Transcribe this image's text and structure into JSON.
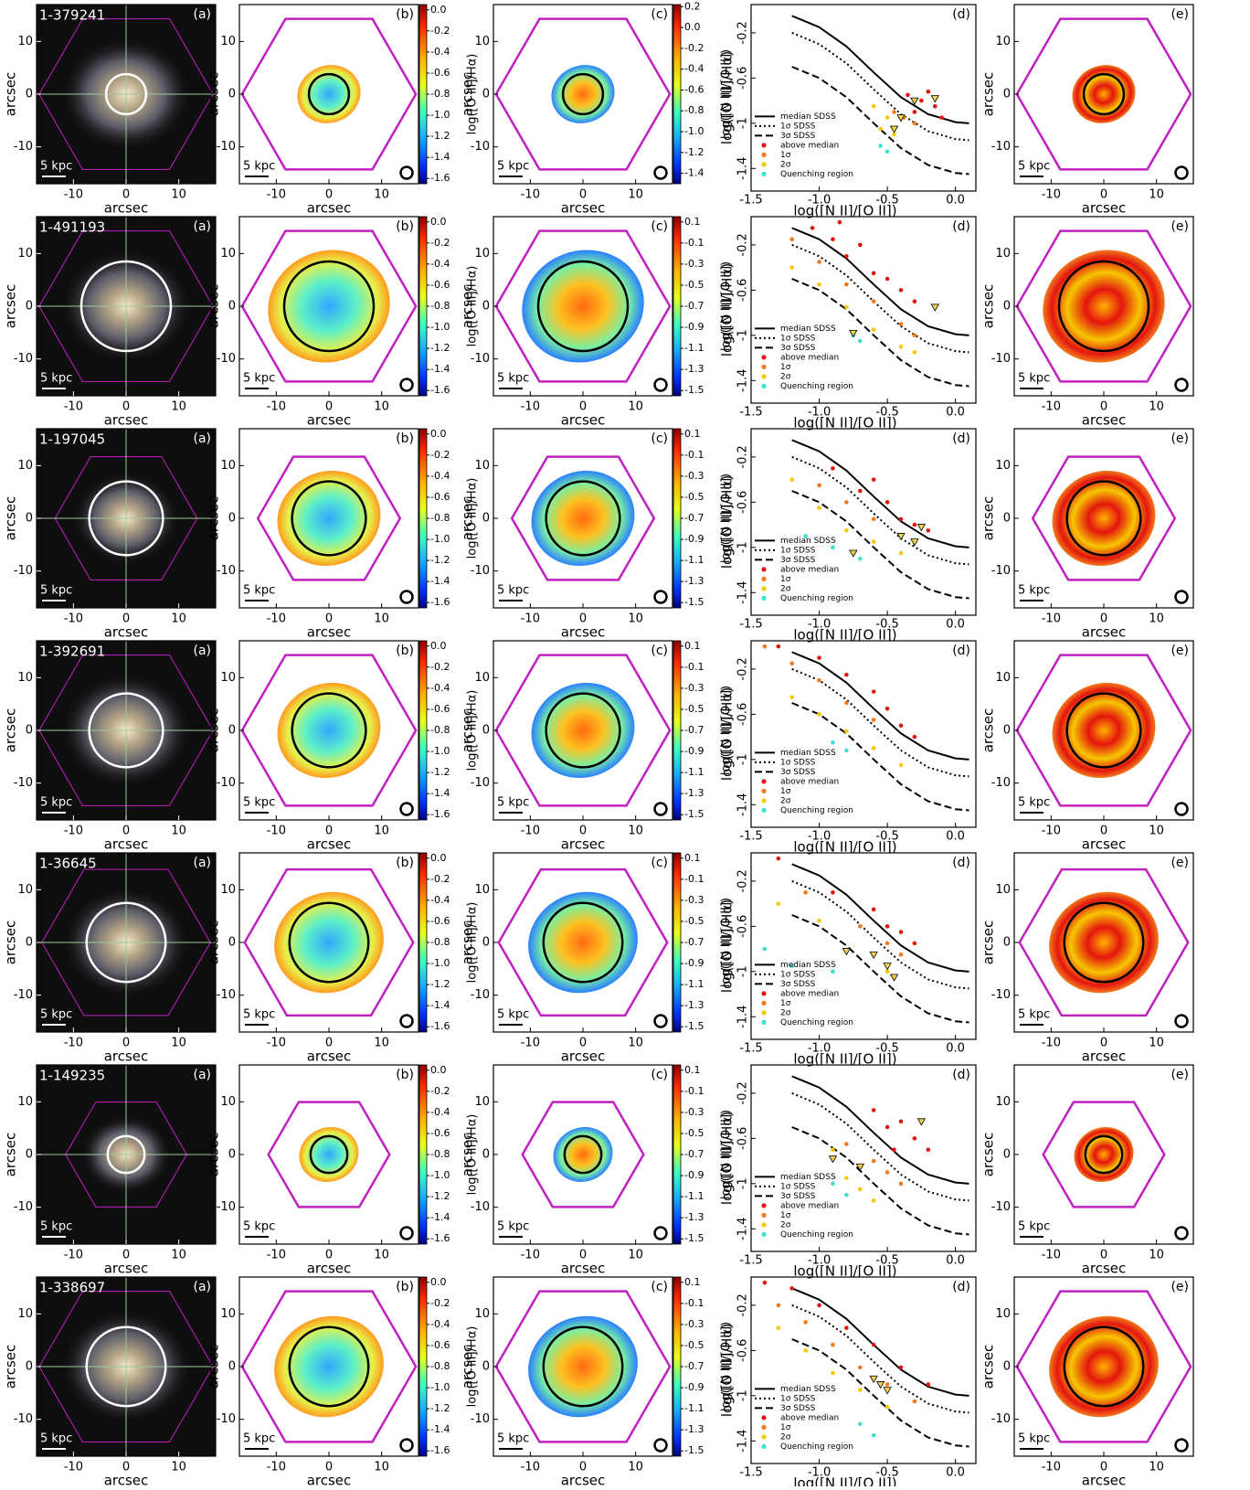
{
  "chart_data": {
    "type": "scatter",
    "map_axis": {
      "xlabel": "arcsec",
      "ylabel": "arcsec",
      "xlim": [
        -17,
        17
      ],
      "ylim": [
        -17,
        17
      ],
      "xticks": [
        -10,
        0,
        10
      ],
      "yticks": [
        -10,
        0,
        10
      ],
      "scale_label": "5 kpc"
    },
    "panel_letters": [
      "(a)",
      "(b)",
      "(c)",
      "(d)",
      "(e)"
    ],
    "cbar_o3": {
      "label": "log([O III]/Hα)",
      "ylim": [
        -1.65,
        0.05
      ],
      "yticks": [
        {
          "value": 0,
          "label": "0.0"
        },
        -0.2,
        -0.4,
        -0.6,
        -0.8,
        {
          "value": -1,
          "label": "-1.0"
        },
        -1.2,
        -1.4,
        -1.6
      ]
    },
    "cbar_n2o2_label": "log([N II]/[O II])",
    "bpt": {
      "xlabel": "log([N II]/[O II])",
      "ylabel": "log([O III]/Hα)",
      "xlim": [
        -1.5,
        0.15
      ],
      "ylim": [
        -1.6,
        0.05
      ],
      "xticks": [
        -1.5,
        {
          "value": -1,
          "label": "-1.0"
        },
        -0.5,
        {
          "value": 0,
          "label": "0.0"
        }
      ],
      "yticks": [
        -0.2,
        -0.6,
        -1,
        -1.4
      ],
      "lines": [
        {
          "name": "median SDSS",
          "style": "solid",
          "x": [
            -1.2,
            -1.0,
            -0.8,
            -0.6,
            -0.4,
            -0.2,
            0.0,
            0.1
          ],
          "y": [
            -0.05,
            -0.15,
            -0.32,
            -0.55,
            -0.77,
            -0.92,
            -0.99,
            -1.0
          ]
        },
        {
          "name": "1σ SDSS",
          "style": "dotted",
          "x": [
            -1.2,
            -1.0,
            -0.8,
            -0.6,
            -0.4,
            -0.2,
            0.0,
            0.1
          ],
          "y": [
            -0.2,
            -0.3,
            -0.47,
            -0.7,
            -0.92,
            -1.07,
            -1.14,
            -1.15
          ]
        },
        {
          "name": "3σ SDSS",
          "style": "dashed",
          "x": [
            -1.2,
            -1.0,
            -0.8,
            -0.6,
            -0.4,
            -0.2,
            0.0,
            0.1
          ],
          "y": [
            -0.5,
            -0.6,
            -0.77,
            -1.0,
            -1.22,
            -1.37,
            -1.44,
            -1.45
          ]
        }
      ],
      "series": [
        {
          "name": "above median",
          "color": "#e4150f"
        },
        {
          "name": "1σ",
          "color": "#f27a1c"
        },
        {
          "name": "2σ",
          "color": "#f6c700"
        },
        {
          "name": "Quenching region",
          "color": "#3fe0d0"
        }
      ]
    },
    "rows": [
      {
        "id": "1-379241",
        "hex_radius": 16.5,
        "re_radius": 3.8,
        "cbar_n2o2": {
          "ylim": [
            -1.5,
            0.22
          ],
          "yticks": [
            0.2,
            {
              "value": 0,
              "label": "0.0"
            },
            -0.2,
            -0.4,
            -0.6,
            -0.8,
            {
              "value": -1,
              "label": "-1.0"
            },
            -1.2,
            -1.4
          ]
        },
        "points": [
          {
            "x": [
              -0.35,
              -0.25,
              -0.15,
              -0.3,
              -0.2,
              -0.1
            ],
            "y": [
              -0.75,
              -0.8,
              -0.85,
              -0.9,
              -0.72,
              -0.95
            ]
          },
          {
            "x": [
              -0.45,
              -0.38,
              -0.3
            ],
            "y": [
              -0.9,
              -0.95,
              -1.0
            ]
          },
          {
            "x": [
              -0.6,
              -0.55,
              -0.45,
              -0.5
            ],
            "y": [
              -0.85,
              -1.05,
              -1.1,
              -0.95
            ]
          },
          {
            "x": [
              -0.55,
              -0.5
            ],
            "y": [
              -1.2,
              -1.25
            ]
          }
        ],
        "limits": {
          "x": [
            -0.4,
            -0.45,
            -0.3,
            -0.15
          ],
          "y": [
            -0.95,
            -1.05,
            -0.8,
            -0.78
          ]
        }
      },
      {
        "id": "1-491193",
        "hex_radius": 16.5,
        "re_radius": 8.5,
        "cbar_n2o2": {
          "ylim": [
            -1.55,
            0.15
          ],
          "yticks": [
            0.1,
            -0.1,
            -0.3,
            -0.5,
            -0.7,
            -0.9,
            -1.1,
            -1.3,
            -1.5
          ]
        },
        "points": [
          {
            "x": [
              -1.05,
              -0.9,
              -0.8,
              -0.7,
              -0.6,
              -0.5,
              -0.4,
              -0.3,
              -0.85
            ],
            "y": [
              -0.05,
              -0.15,
              -0.3,
              -0.2,
              -0.45,
              -0.5,
              -0.6,
              -0.7,
              0
            ]
          },
          {
            "x": [
              -1.2,
              -1,
              -0.8,
              -0.6,
              -0.4,
              -0.3
            ],
            "y": [
              -0.15,
              -0.35,
              -0.55,
              -0.7,
              -0.9,
              -1
            ]
          },
          {
            "x": [
              -1.2,
              -1,
              -0.8,
              -0.6,
              -0.4,
              -0.3
            ],
            "y": [
              -0.4,
              -0.55,
              -0.75,
              -0.95,
              -1.1,
              -1.15
            ]
          },
          {
            "x": [
              -0.75,
              -0.7
            ],
            "y": [
              -1,
              -1.05
            ]
          }
        ],
        "limits": {
          "x": [
            -0.75,
            -0.15
          ],
          "y": [
            -0.98,
            -0.75
          ]
        }
      },
      {
        "id": "1-197045",
        "hex_radius": 13.5,
        "re_radius": 7,
        "cbar_n2o2": {
          "ylim": [
            -1.55,
            0.15
          ],
          "yticks": [
            0.1,
            -0.1,
            -0.3,
            -0.5,
            -0.7,
            -0.9,
            -1.1,
            -1.3,
            -1.5
          ]
        },
        "points": [
          {
            "x": [
              -0.9,
              -0.7,
              -0.6,
              -0.5,
              -0.4,
              -0.3,
              -0.2
            ],
            "y": [
              -0.3,
              -0.5,
              -0.4,
              -0.6,
              -0.75,
              -0.8,
              -0.85
            ]
          },
          {
            "x": [
              -1,
              -0.8,
              -0.6,
              -0.4
            ],
            "y": [
              -0.45,
              -0.6,
              -0.75,
              -0.9
            ]
          },
          {
            "x": [
              -1.2,
              -1,
              -0.8,
              -0.6,
              -0.4
            ],
            "y": [
              -0.4,
              -0.65,
              -0.85,
              -0.95,
              -1.05
            ]
          },
          {
            "x": [
              -1.1,
              -0.9,
              -0.7
            ],
            "y": [
              -0.9,
              -1,
              -1.1
            ]
          }
        ],
        "limits": {
          "x": [
            -0.4,
            -0.3,
            -0.25,
            -0.75
          ],
          "y": [
            -0.9,
            -0.95,
            -0.82,
            -1.05
          ]
        }
      },
      {
        "id": "1-392691",
        "hex_radius": 16.5,
        "re_radius": 7,
        "cbar_n2o2": {
          "ylim": [
            -1.55,
            0.15
          ],
          "yticks": [
            0.1,
            -0.1,
            -0.3,
            -0.5,
            -0.7,
            -0.9,
            -1.1,
            -1.3,
            -1.5
          ]
        },
        "points": [
          {
            "x": [
              -1.3,
              -1,
              -0.8,
              -0.6,
              -0.5,
              -0.4,
              -0.3
            ],
            "y": [
              0.0,
              -0.1,
              -0.25,
              -0.4,
              -0.55,
              -0.7,
              -0.8
            ]
          },
          {
            "x": [
              -1.4,
              -1.2,
              -1,
              -0.8,
              -0.6
            ],
            "y": [
              0,
              -0.15,
              -0.3,
              -0.5,
              -0.65
            ]
          },
          {
            "x": [
              -1.2,
              -1,
              -0.8,
              -0.6,
              -0.4
            ],
            "y": [
              -0.45,
              -0.6,
              -0.75,
              -0.9,
              -1.05
            ]
          },
          {
            "x": [
              -0.9,
              -0.8
            ],
            "y": [
              -0.85,
              -0.92
            ]
          }
        ],
        "limits": {
          "x": [],
          "y": []
        }
      },
      {
        "id": "1-36645",
        "hex_radius": 16,
        "re_radius": 7.5,
        "cbar_n2o2": {
          "ylim": [
            -1.55,
            0.15
          ],
          "yticks": [
            0.1,
            -0.1,
            -0.3,
            -0.5,
            -0.7,
            -0.9,
            -1.1,
            -1.3,
            -1.5
          ]
        },
        "points": [
          {
            "x": [
              -1.3,
              -0.9,
              -0.6,
              -0.5,
              -0.4,
              -0.3
            ],
            "y": [
              0.0,
              -0.3,
              -0.45,
              -0.6,
              -0.65,
              -0.75
            ]
          },
          {
            "x": [
              -1.1,
              -0.7,
              -0.5,
              -0.4
            ],
            "y": [
              -0.3,
              -0.6,
              -0.75,
              -0.85
            ]
          },
          {
            "x": [
              -1.3,
              -1,
              -0.6,
              -0.5
            ],
            "y": [
              -0.4,
              -0.55,
              -0.85,
              -1
            ]
          },
          {
            "x": [
              -1.4,
              -1.2,
              -0.9
            ],
            "y": [
              -0.8,
              -0.95,
              -1
            ]
          }
        ],
        "limits": {
          "x": [
            -0.8,
            -0.6,
            -0.5,
            -0.45
          ],
          "y": [
            -0.82,
            -0.85,
            -0.95,
            -1.05
          ]
        }
      },
      {
        "id": "1-149235",
        "hex_radius": 11.5,
        "re_radius": 3.5,
        "cbar_n2o2": {
          "ylim": [
            -1.55,
            0.15
          ],
          "yticks": [
            0.1,
            -0.1,
            -0.3,
            -0.5,
            -0.7,
            -0.9,
            -1.1,
            -1.3,
            -1.5
          ]
        },
        "points": [
          {
            "x": [
              -0.6,
              -0.5,
              -0.4,
              -0.3,
              -0.2,
              -0.45
            ],
            "y": [
              -0.35,
              -0.5,
              -0.45,
              -0.6,
              -0.7,
              -0.7
            ]
          },
          {
            "x": [
              -0.8,
              -0.6,
              -0.5,
              -0.4
            ],
            "y": [
              -0.65,
              -0.8,
              -0.9,
              -1
            ]
          },
          {
            "x": [
              -0.9,
              -0.8,
              -0.7,
              -0.6
            ],
            "y": [
              -0.7,
              -0.95,
              -1.05,
              -1.15
            ]
          },
          {
            "x": [
              -0.8,
              -0.9
            ],
            "y": [
              -1.1,
              -1
            ]
          }
        ],
        "limits": {
          "x": [
            -0.9,
            -0.25,
            -0.7
          ],
          "y": [
            -0.78,
            -0.45,
            -0.85
          ]
        }
      },
      {
        "id": "1-338697",
        "hex_radius": 16.5,
        "re_radius": 7.5,
        "cbar_n2o2": {
          "ylim": [
            -1.55,
            0.15
          ],
          "yticks": [
            0.1,
            -0.1,
            -0.3,
            -0.5,
            -0.7,
            -0.9,
            -1.1,
            -1.3,
            -1.5
          ]
        },
        "points": [
          {
            "x": [
              -1.4,
              -1.2,
              -1,
              -0.8,
              -0.6,
              -0.4,
              -0.2
            ],
            "y": [
              0.0,
              -0.05,
              -0.2,
              -0.4,
              -0.55,
              -0.75,
              -0.9
            ]
          },
          {
            "x": [
              -1.3,
              -1.1,
              -0.9,
              -0.7,
              -0.5,
              -0.3
            ],
            "y": [
              -0.2,
              -0.35,
              -0.55,
              -0.75,
              -0.9,
              -1.05
            ]
          },
          {
            "x": [
              -1.3,
              -1.1,
              -0.9,
              -0.7,
              -0.5
            ],
            "y": [
              -0.4,
              -0.6,
              -0.8,
              -0.95,
              -1.1
            ]
          },
          {
            "x": [
              -0.7,
              -0.6
            ],
            "y": [
              -1.25,
              -1.35
            ]
          }
        ],
        "limits": {
          "x": [
            -0.6,
            -0.55,
            -0.5
          ],
          "y": [
            -0.85,
            -0.9,
            -0.95
          ]
        }
      }
    ]
  }
}
